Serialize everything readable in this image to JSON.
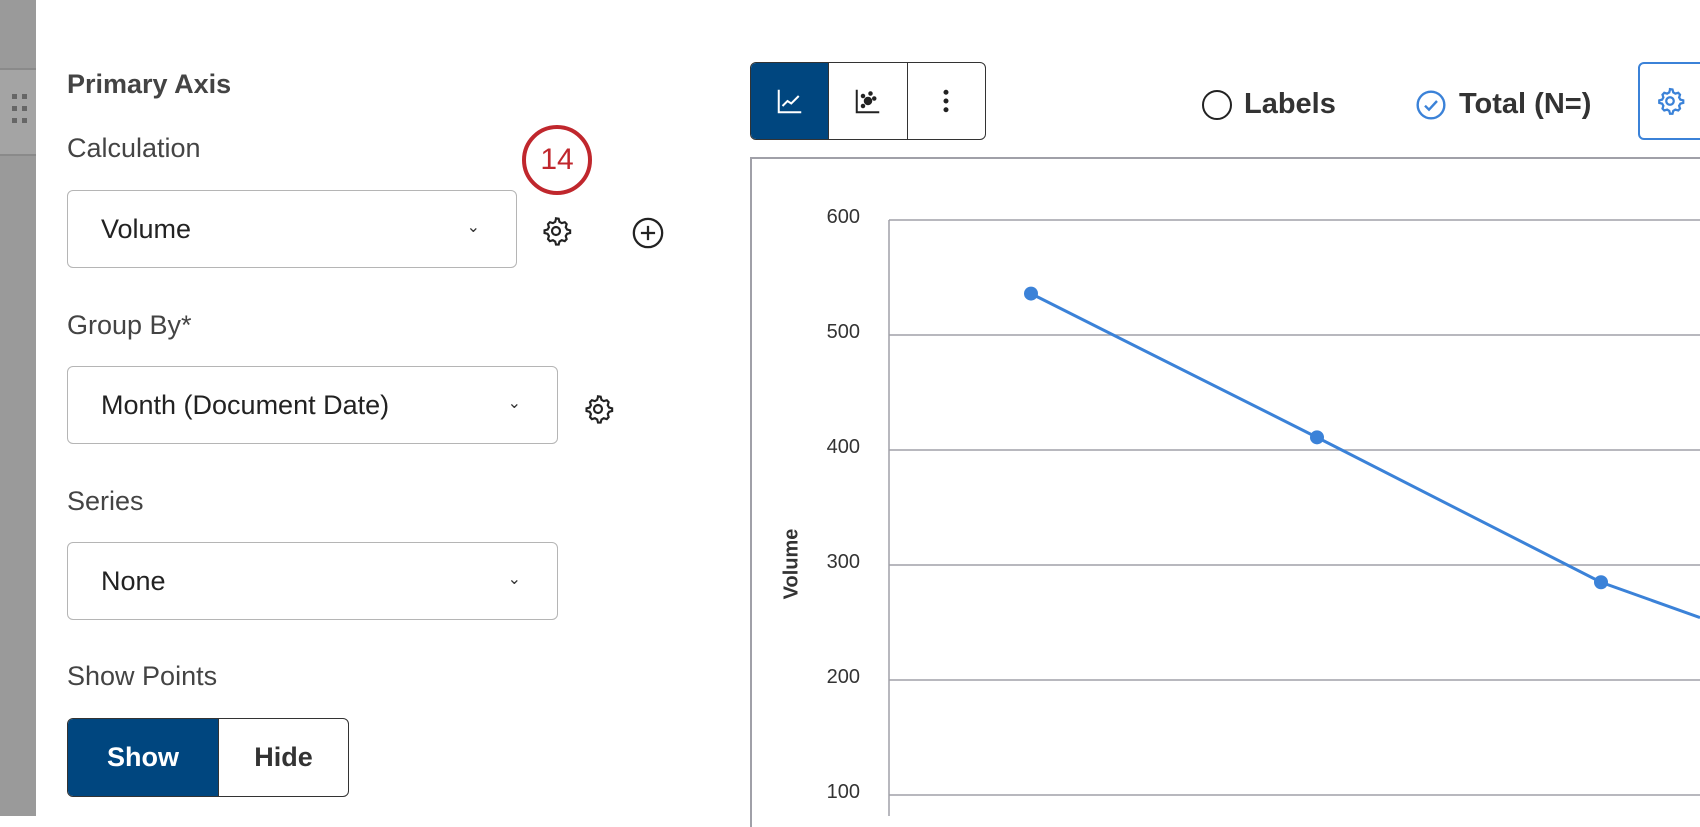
{
  "panel": {
    "title": "Primary Axis",
    "calculation": {
      "label": "Calculation",
      "value": "Volume"
    },
    "badge": "14",
    "group_by": {
      "label": "Group By*",
      "value": "Month (Document Date)"
    },
    "series": {
      "label": "Series",
      "value": "None"
    },
    "show_points": {
      "label": "Show Points",
      "options": [
        "Show",
        "Hide"
      ],
      "selected": "Show"
    }
  },
  "toolbar": {
    "buttons": [
      "line-chart-icon",
      "scatter-chart-icon",
      "more-vertical-icon"
    ],
    "active": "line-chart-icon",
    "labels_option": {
      "label": "Labels",
      "checked": false
    },
    "total_option": {
      "label": "Total (N=)",
      "checked": true
    }
  },
  "colors": {
    "primary": "#00467f",
    "line": "#3b82d8",
    "badge": "#c0272d"
  },
  "chart_data": {
    "type": "line",
    "ylabel": "Volume",
    "ylim": [
      100,
      600
    ],
    "yticks": [
      "600",
      "500",
      "400",
      "300",
      "200",
      "100"
    ],
    "grid": true,
    "values": [
      536,
      411,
      285
    ]
  }
}
